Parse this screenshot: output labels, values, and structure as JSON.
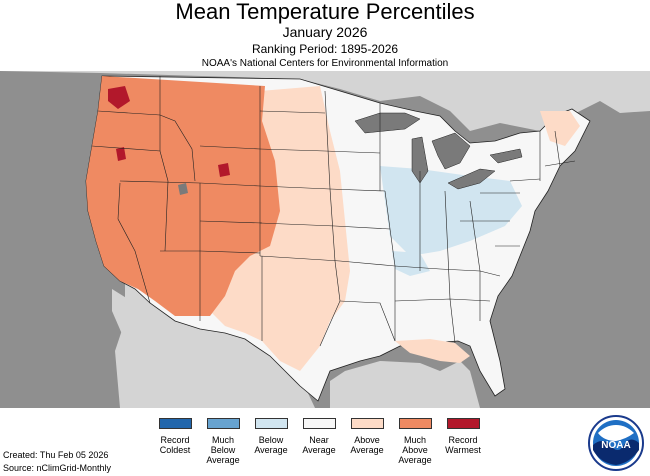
{
  "header": {
    "title": "Mean Temperature Percentiles",
    "subtitle": "January 2026",
    "ranking_period": "Ranking Period: 1895-2026",
    "agency": "NOAA's National Centers for Environmental Information"
  },
  "legend": [
    {
      "label": "Record\nColdest",
      "color": "#2166ac"
    },
    {
      "label": "Much\nBelow\nAverage",
      "color": "#67a3d0"
    },
    {
      "label": "Below\nAverage",
      "color": "#d1e5f0"
    },
    {
      "label": "Near\nAverage",
      "color": "#f7f7f7"
    },
    {
      "label": "Above\nAverage",
      "color": "#fddbc7"
    },
    {
      "label": "Much\nAbove\nAverage",
      "color": "#ef8a62"
    },
    {
      "label": "Record\nWarmest",
      "color": "#b2182b"
    }
  ],
  "footer": {
    "created": "Created: Thu Feb 05 2026",
    "source": "Source: nClimGrid-Monthly"
  },
  "logo": {
    "text": "NOAA"
  },
  "colors": {
    "ocean": "#8f8f8f",
    "land_outside": "#d4d4d4",
    "lakes": "#7a7a7a",
    "near_average": "#f7f7f7",
    "above_average": "#fddbc7",
    "much_above_average": "#ef8a62",
    "record_warmest": "#b2182b",
    "below_average": "#d1e5f0"
  }
}
